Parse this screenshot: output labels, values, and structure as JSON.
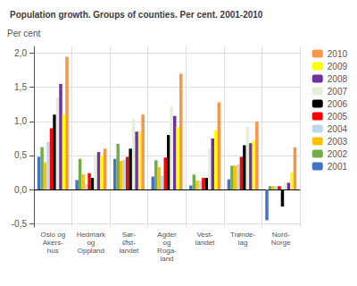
{
  "chart_data": {
    "type": "bar",
    "title": "Population growth. Groups of counties. Per cent. 2001-2010",
    "ylabel": "Per cent",
    "categories": [
      "Oslo og\nAkers-\nhus",
      "Hedmark\nog\nOppland",
      "Sør-\nØst-\nlandet",
      "Agder\nog\nRoga-\nland",
      "Vest-\nlandet",
      "Trønde-\nlag",
      "Nord-\nNorge"
    ],
    "series": [
      {
        "name": "2001",
        "color": "#4472C4",
        "values": [
          0.48,
          0.14,
          0.45,
          0.19,
          0.06,
          0.15,
          -0.45
        ]
      },
      {
        "name": "2002",
        "color": "#70AD47",
        "values": [
          0.62,
          0.45,
          0.67,
          0.43,
          0.22,
          0.35,
          0.05
        ]
      },
      {
        "name": "2003",
        "color": "#FFC000",
        "values": [
          0.4,
          0.22,
          0.42,
          0.33,
          0.13,
          0.35,
          0.05
        ]
      },
      {
        "name": "2004",
        "color": "#BDD7EE",
        "values": [
          0.7,
          0.08,
          0.44,
          0.2,
          0.13,
          0.37,
          0.05
        ]
      },
      {
        "name": "2005",
        "color": "#FF0000",
        "values": [
          0.9,
          0.24,
          0.48,
          0.47,
          0.17,
          0.48,
          0.05
        ]
      },
      {
        "name": "2006",
        "color": "#000000",
        "values": [
          1.1,
          0.17,
          0.6,
          0.8,
          0.17,
          0.65,
          -0.25
        ]
      },
      {
        "name": "2007",
        "color": "#E2EFDA",
        "values": [
          1.35,
          0.52,
          1.03,
          1.22,
          0.6,
          0.92,
          0.1
        ]
      },
      {
        "name": "2008",
        "color": "#7030A0",
        "values": [
          1.55,
          0.55,
          0.85,
          1.08,
          0.75,
          0.68,
          0.1
        ]
      },
      {
        "name": "2009",
        "color": "#FFFF00",
        "values": [
          1.1,
          0.5,
          0.85,
          0.92,
          0.87,
          0.72,
          0.25
        ]
      },
      {
        "name": "2010",
        "color": "#F79646",
        "values": [
          1.95,
          0.6,
          1.1,
          1.7,
          1.28,
          1.0,
          0.62
        ]
      }
    ],
    "ylim": [
      -0.55,
      2.1
    ],
    "yticks": [
      {
        "value": -0.5,
        "label": "-0,5"
      },
      {
        "value": 0.0,
        "label": "0,0"
      },
      {
        "value": 0.5,
        "label": "0,5"
      },
      {
        "value": 1.0,
        "label": "1,0"
      },
      {
        "value": 1.5,
        "label": "1,5"
      },
      {
        "value": 2.0,
        "label": "2,0"
      }
    ],
    "grid": true,
    "legend": "right"
  }
}
